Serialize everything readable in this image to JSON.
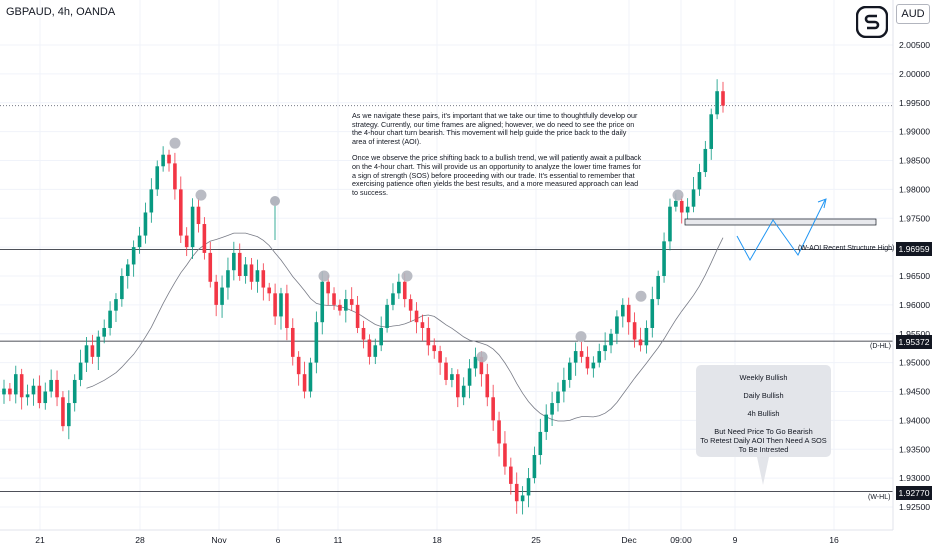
{
  "header": {
    "symbol": "GBPAUD, 4h, OANDA",
    "currency": "AUD"
  },
  "logo": {
    "icon": "tradingview-s-logo-icon"
  },
  "note": {
    "paragraph_1": "As we navigate these pairs, it's important that we take our time to thoughtfully develop our strategy. Currently, our time frames are aligned; however, we do need to see the price on the 4-hour chart turn bearish. This movement will help guide the price back to the daily area of interest (AOI).",
    "paragraph_2": "Once we observe the price shifting back to a bullish trend, we will patiently await a pullback on the 4-hour chart. This will provide us an opportunity to analyze the lower time frames for a sign of strength (SOS) before proceeding with our trade. It's essential to remember that exercising patience often yields the best results, and a more measured approach can lead to success."
  },
  "infobox": {
    "line_1": "Weekly Bullish",
    "line_2": "Daily Bullish",
    "line_3": "4h Bullish",
    "line_4": "But Need Price To Go Bearish",
    "line_5": "To Retest Daily AOI Then Need A SOS",
    "line_6": "To Be Intrested"
  },
  "levels": [
    {
      "price": 1.96959,
      "tag": "1.96959",
      "label": "(W-AOI Recent Structure High)"
    },
    {
      "price": 1.95372,
      "tag": "1.95372",
      "label": "(D-HL)"
    },
    {
      "price": 1.9277,
      "tag": "1.92770",
      "label": "(W-HL)"
    }
  ],
  "chart_data": {
    "type": "candlestick",
    "y_axis": {
      "ticks": [
        "2.00500",
        "2.00000",
        "1.99500",
        "1.99000",
        "1.98500",
        "1.98000",
        "1.97500",
        "1.97000",
        "1.96500",
        "1.96000",
        "1.95500",
        "1.95000",
        "1.94500",
        "1.94000",
        "1.93500",
        "1.93000",
        "1.92500"
      ],
      "range": [
        1.9225,
        2.0075
      ]
    },
    "x_axis": {
      "ticks": [
        "21",
        "28",
        "Nov",
        "6",
        "11",
        "18",
        "25",
        "Dec",
        "09:00",
        "9",
        "16"
      ]
    },
    "last_price": 1.9945,
    "colors": {
      "up": "#089981",
      "down": "#f23645",
      "ma": "#787b86",
      "grid": "#f0f3fa"
    },
    "swing_points": [
      1.988,
      1.979,
      1.965,
      1.965,
      1.951,
      1.9545,
      1.9615,
      1.979
    ],
    "series_close": [
      1.9455,
      1.9445,
      1.948,
      1.944,
      1.9445,
      1.946,
      1.943,
      1.945,
      1.947,
      1.944,
      1.939,
      1.943,
      1.947,
      1.95,
      1.953,
      1.951,
      1.9545,
      1.956,
      1.959,
      1.961,
      1.965,
      1.967,
      1.97,
      1.972,
      1.976,
      1.98,
      1.984,
      1.986,
      1.9845,
      1.98,
      1.972,
      1.97,
      1.977,
      1.974,
      1.969,
      1.964,
      1.96,
      1.963,
      1.966,
      1.969,
      1.965,
      1.967,
      1.964,
      1.966,
      1.963,
      1.962,
      1.958,
      1.962,
      1.956,
      1.951,
      1.948,
      1.945,
      1.95,
      1.957,
      1.964,
      1.962,
      1.96,
      1.959,
      1.961,
      1.96,
      1.956,
      1.954,
      1.951,
      1.953,
      1.956,
      1.96,
      1.962,
      1.964,
      1.961,
      1.959,
      1.957,
      1.956,
      1.953,
      1.952,
      1.95,
      1.947,
      1.948,
      1.944,
      1.946,
      1.949,
      1.951,
      1.948,
      1.944,
      1.94,
      1.936,
      1.932,
      1.929,
      1.926,
      1.927,
      1.93,
      1.934,
      1.938,
      1.941,
      1.943,
      1.945,
      1.947,
      1.95,
      1.952,
      1.951,
      1.949,
      1.95,
      1.952,
      1.953,
      1.955,
      1.958,
      1.96,
      1.957,
      1.954,
      1.953,
      1.956,
      1.961,
      1.965,
      1.971,
      1.977,
      1.978,
      1.976,
      1.977,
      1.98,
      1.983,
      1.987,
      1.993,
      1.997,
      1.9945
    ]
  }
}
